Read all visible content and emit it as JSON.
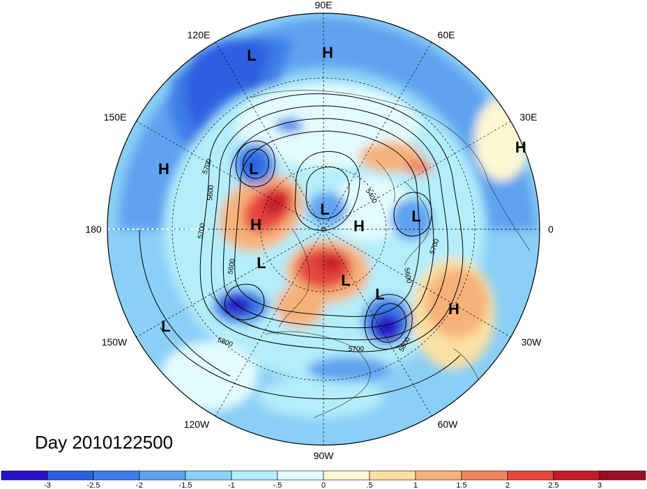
{
  "title": "Day 2010122500",
  "longitude_labels": [
    "90E",
    "60E",
    "30E",
    "0",
    "30W",
    "60W",
    "90W",
    "120W",
    "150W",
    "180",
    "150E",
    "120E"
  ],
  "pressure_systems": [
    "L",
    "H",
    "L",
    "L",
    "H",
    "L",
    "H",
    "H",
    "H",
    "L",
    "L",
    "L",
    "L",
    "H",
    "L"
  ],
  "contour_labels": [
    "5700",
    "5600",
    "5700",
    "5400",
    "5600",
    "5600",
    "5700",
    "5700",
    "5800",
    "5800"
  ],
  "colorbar": {
    "ticks": [
      "-3",
      "-2.5",
      "-2",
      "-1.5",
      "-1",
      "-.5",
      "0",
      ".5",
      "1",
      "1.5",
      "2",
      "2.5",
      "3"
    ],
    "colors": [
      "#2b12c8",
      "#2f5fe0",
      "#3d7fe8",
      "#5ea3f0",
      "#8ccff6",
      "#b3eefa",
      "#e3fbfd",
      "#fdf7d2",
      "#fae0a3",
      "#f6b27a",
      "#f0855e",
      "#e6473f",
      "#c51b2a",
      "#9c0f23"
    ]
  }
}
